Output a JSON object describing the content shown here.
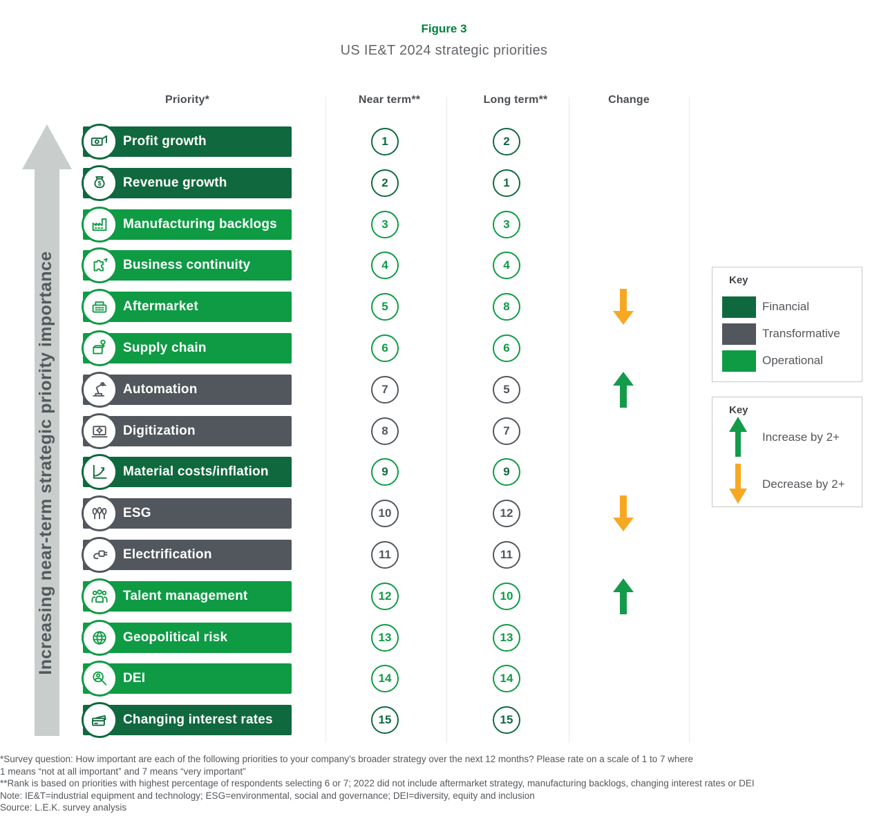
{
  "figure": {
    "label": "Figure 3",
    "title": "US IE&T 2024 strategic priorities"
  },
  "columns": {
    "priority": "Priority*",
    "near": "Near term**",
    "long": "Long term**",
    "change": "Change"
  },
  "y_axis_label": "Increasing near-term strategic priority importance",
  "palette": {
    "financial": "#10693E",
    "transformative": "#52575D",
    "operational": "#0E9B44",
    "increase": "#149B49",
    "decrease": "#F7A823",
    "figure_label_green": "#00833E",
    "axis_arrow_gray": "#C9CDCB",
    "divider_gray": "#E7E8E8"
  },
  "chart_data": {
    "type": "table",
    "title": "US IE&T 2024 strategic priorities",
    "figure_label": "Figure 3",
    "columns": [
      "Priority",
      "Near term rank",
      "Long term rank",
      "Change"
    ],
    "y_axis_label": "Increasing near-term strategic priority importance",
    "rows": [
      {
        "priority": "Profit growth",
        "category": "Financial",
        "icon": "money-bills-icon",
        "near_term": 1,
        "long_term": 2,
        "change": null
      },
      {
        "priority": "Revenue growth",
        "category": "Financial",
        "icon": "money-bag-icon",
        "near_term": 2,
        "long_term": 1,
        "change": null
      },
      {
        "priority": "Manufacturing backlogs",
        "category": "Operational",
        "icon": "factory-icon",
        "near_term": 3,
        "long_term": 3,
        "change": null
      },
      {
        "priority": "Business continuity",
        "category": "Operational",
        "icon": "puzzle-icon",
        "near_term": 4,
        "long_term": 4,
        "change": null
      },
      {
        "priority": "Aftermarket",
        "category": "Operational",
        "icon": "cash-register-icon",
        "near_term": 5,
        "long_term": 8,
        "change": "decrease"
      },
      {
        "priority": "Supply chain",
        "category": "Operational",
        "icon": "package-location-icon",
        "near_term": 6,
        "long_term": 6,
        "change": null
      },
      {
        "priority": "Automation",
        "category": "Transformative",
        "icon": "robot-arm-icon",
        "near_term": 7,
        "long_term": 5,
        "change": "increase"
      },
      {
        "priority": "Digitization",
        "category": "Transformative",
        "icon": "digital-gear-icon",
        "near_term": 8,
        "long_term": 7,
        "change": null
      },
      {
        "priority": "Material costs/inflation",
        "category": "Financial",
        "icon": "growth-curve-icon",
        "near_term": 9,
        "long_term": 9,
        "change": null,
        "circle_border": "#0E9B44"
      },
      {
        "priority": "ESG",
        "category": "Transformative",
        "icon": "trees-icon",
        "near_term": 10,
        "long_term": 12,
        "change": "decrease"
      },
      {
        "priority": "Electrification",
        "category": "Transformative",
        "icon": "plug-icon",
        "near_term": 11,
        "long_term": 11,
        "change": null
      },
      {
        "priority": "Talent management",
        "category": "Operational",
        "icon": "people-icon",
        "near_term": 12,
        "long_term": 10,
        "change": "increase"
      },
      {
        "priority": "Geopolitical risk",
        "category": "Operational",
        "icon": "globe-icon",
        "near_term": 13,
        "long_term": 13,
        "change": null
      },
      {
        "priority": "DEI",
        "category": "Operational",
        "icon": "person-magnifier-icon",
        "near_term": 14,
        "long_term": 14,
        "change": null
      },
      {
        "priority": "Changing interest rates",
        "category": "Financial",
        "icon": "credit-cards-icon",
        "near_term": 15,
        "long_term": 15,
        "change": null
      }
    ],
    "legend": {
      "categories": [
        "Financial",
        "Transformative",
        "Operational"
      ],
      "change": [
        "Increase by 2+",
        "Decrease by 2+"
      ],
      "position": "right"
    }
  },
  "category_key": {
    "title": "Key",
    "items": [
      {
        "label": "Financial",
        "color": "#10693E"
      },
      {
        "label": "Transformative",
        "color": "#52575D"
      },
      {
        "label": "Operational",
        "color": "#0E9B44"
      }
    ]
  },
  "change_key": {
    "title": "Key",
    "items": [
      {
        "label": "Increase by 2+",
        "direction": "up",
        "color": "#149B49"
      },
      {
        "label": "Decrease by 2+",
        "direction": "down",
        "color": "#F7A823"
      }
    ]
  },
  "footnotes": [
    "*Survey question: How important are each of the following priorities to your company’s broader strategy over the next 12 months? Please rate on a scale of 1 to 7 where",
    "1 means “not at all important” and 7 means “very important”",
    "**Rank is based on priorities with highest percentage of respondents selecting 6 or 7; 2022 did not include aftermarket strategy, manufacturing backlogs, changing interest rates or DEI",
    "Note: IE&T=industrial equipment and technology; ESG=environmental, social and governance; DEI=diversity, equity and inclusion",
    "Source: L.E.K. survey analysis"
  ]
}
